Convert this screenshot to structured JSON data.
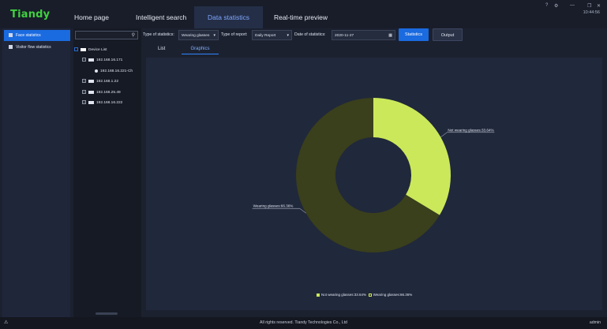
{
  "app": {
    "logo": "Tiandy",
    "clock": "10:44:56"
  },
  "nav": {
    "tabs": [
      {
        "label": "Home page"
      },
      {
        "label": "Intelligent search"
      },
      {
        "label": "Data statistics"
      },
      {
        "label": "Real-time preview"
      }
    ]
  },
  "window_controls": {
    "settings": "⚙",
    "help": "?",
    "minimize": "—",
    "restore": "❐",
    "close": "✕"
  },
  "sidebar": {
    "items": [
      {
        "label": "Face statistics"
      },
      {
        "label": "Visitor flow statistics"
      }
    ]
  },
  "tree": {
    "search_placeholder": "",
    "nodes": [
      {
        "label": "Device List"
      },
      {
        "label": "192.168.16.171"
      },
      {
        "label": "192.168.16.221-Ch"
      },
      {
        "label": "192.168.1.22"
      },
      {
        "label": "192.168.25.49"
      },
      {
        "label": "192.168.16.222"
      }
    ]
  },
  "filters": {
    "type_of_statistics_label": "Type of statistics:",
    "type_of_statistics_value": "Wearing glasses",
    "type_of_report_label": "Type of report:",
    "type_of_report_value": "Daily Report",
    "date_label": "Date of statistics:",
    "date_value": "2020-11-27",
    "statistics_button": "Statistics",
    "output_button": "Output"
  },
  "subtabs": [
    {
      "label": "List"
    },
    {
      "label": "Graphics"
    }
  ],
  "chart_data": {
    "type": "pie",
    "slices": [
      {
        "name": "Not wearing glasses",
        "value": 33.64,
        "color": "#cbe85a",
        "label": "Not wearing glasses:33.64%"
      },
      {
        "name": "Wearing glasses",
        "value": 66.36,
        "color": "#3a3f1c",
        "label": "Wearing glasses:66.36%"
      }
    ],
    "legend": [
      "Not wearing glasses:33.64%",
      "Wearing glasses:66.36%"
    ],
    "legend_position": "bottom"
  },
  "footer": {
    "copyright": "All rights reserved. Tiandy Technologies Co., Ltd",
    "user": "admin",
    "warning_icon": "⚠"
  }
}
